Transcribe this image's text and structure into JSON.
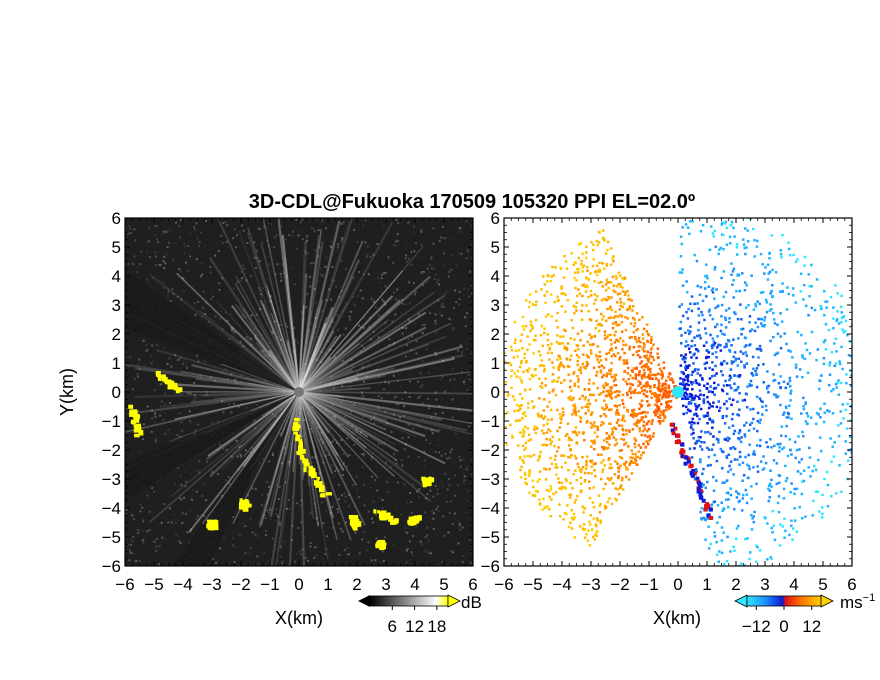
{
  "chart_data": [
    {
      "type": "heatmap",
      "variable": "reflectivity",
      "title": "3D-CDL@Fukuoka 170509 105320 PPI EL=02.0º",
      "xlabel": "X(km)",
      "ylabel": "Y(km)",
      "xlim": [
        -6,
        6
      ],
      "ylim": [
        -6,
        6
      ],
      "xticks": [
        "−6",
        "−5",
        "−4",
        "−3",
        "−2",
        "−1",
        "0",
        "1",
        "2",
        "3",
        "4",
        "5",
        "6"
      ],
      "yticks": [
        "6",
        "5",
        "4",
        "3",
        "2",
        "1",
        "0",
        "−1",
        "−2",
        "−3",
        "−4",
        "−5",
        "−6"
      ],
      "colorbar": {
        "unit": "dB",
        "ticks": [
          "6",
          "12",
          "18"
        ],
        "range": [
          0,
          21
        ],
        "colors": [
          "#000000",
          "#ffffff",
          "#ffff00"
        ]
      },
      "background_color": "#222222"
    },
    {
      "type": "heatmap",
      "variable": "doppler_velocity",
      "xlabel": "X(km)",
      "xlim": [
        -6,
        6
      ],
      "ylim": [
        -6,
        6
      ],
      "xticks": [
        "−6",
        "−5",
        "−4",
        "−3",
        "−2",
        "−1",
        "0",
        "1",
        "2",
        "3",
        "4",
        "5",
        "6"
      ],
      "yticks": [
        "6",
        "5",
        "4",
        "3",
        "2",
        "1",
        "0",
        "−1",
        "−2",
        "−3",
        "−4",
        "−5",
        "−6"
      ],
      "colorbar": {
        "unit": "ms",
        "unit_exp": "−1",
        "ticks": [
          "−12",
          "0",
          "12"
        ],
        "range": [
          -16,
          16
        ],
        "colors": [
          "#2ee6ff",
          "#1e90ff",
          "#0a1ad8",
          "#e01010",
          "#ff7a00",
          "#ffd000"
        ]
      },
      "background_color": "#ffffff"
    }
  ]
}
